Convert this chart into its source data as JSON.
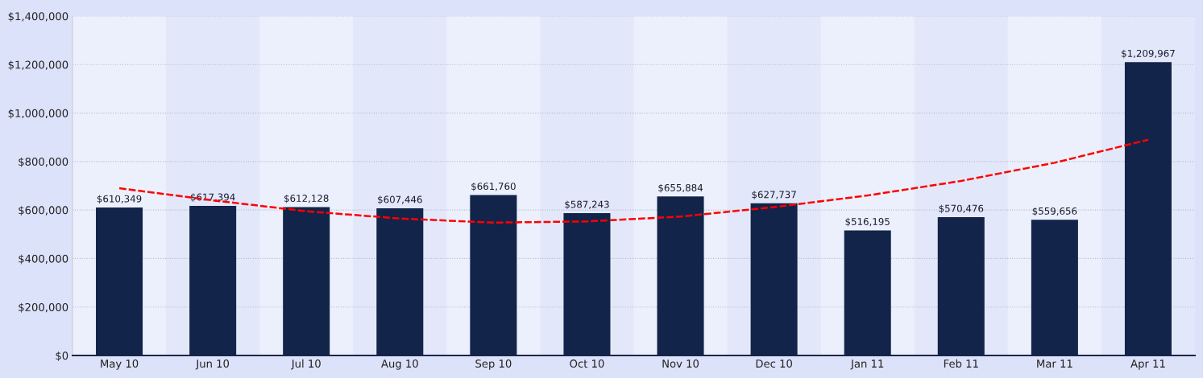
{
  "chart_data": {
    "type": "bar",
    "categories": [
      "May 10",
      "Jun 10",
      "Jul 10",
      "Aug 10",
      "Sep 10",
      "Oct 10",
      "Nov 10",
      "Dec 10",
      "Jan 11",
      "Feb 11",
      "Mar 11",
      "Apr 11"
    ],
    "series": [
      {
        "color": "#13244a",
        "values": [
          610349,
          617394,
          612128,
          607446,
          661760,
          587243,
          655884,
          627737,
          516195,
          570476,
          559656,
          1209967
        ],
        "value_labels": [
          "$610,349",
          "$617,394",
          "$612,128",
          "$607,446",
          "$661,760",
          "$587,243",
          "$655,884",
          "$627,737",
          "$516,195",
          "$570,476",
          "$559,656",
          "$1,209,967"
        ]
      },
      {
        "type": "line",
        "color": "#ff0000",
        "line_style": "dashed",
        "values": [
          690000,
          640000,
          595000,
          565000,
          548000,
          553000,
          573000,
          612000,
          660000,
          720000,
          795000,
          890000
        ]
      }
    ],
    "ylim": [
      0,
      1400000
    ],
    "yticks": [
      {
        "value": 0,
        "label": "$0"
      },
      {
        "value": 200000,
        "label": "$200,000"
      },
      {
        "value": 400000,
        "label": "$400,000"
      },
      {
        "value": 600000,
        "label": "$600,000"
      },
      {
        "value": 800000,
        "label": "$800,000"
      },
      {
        "value": 1000000,
        "label": "$1,000,000"
      },
      {
        "value": 1200000,
        "label": "$1,200,000"
      },
      {
        "value": 1400000,
        "label": "$1,400,000"
      }
    ],
    "grid": "y"
  }
}
